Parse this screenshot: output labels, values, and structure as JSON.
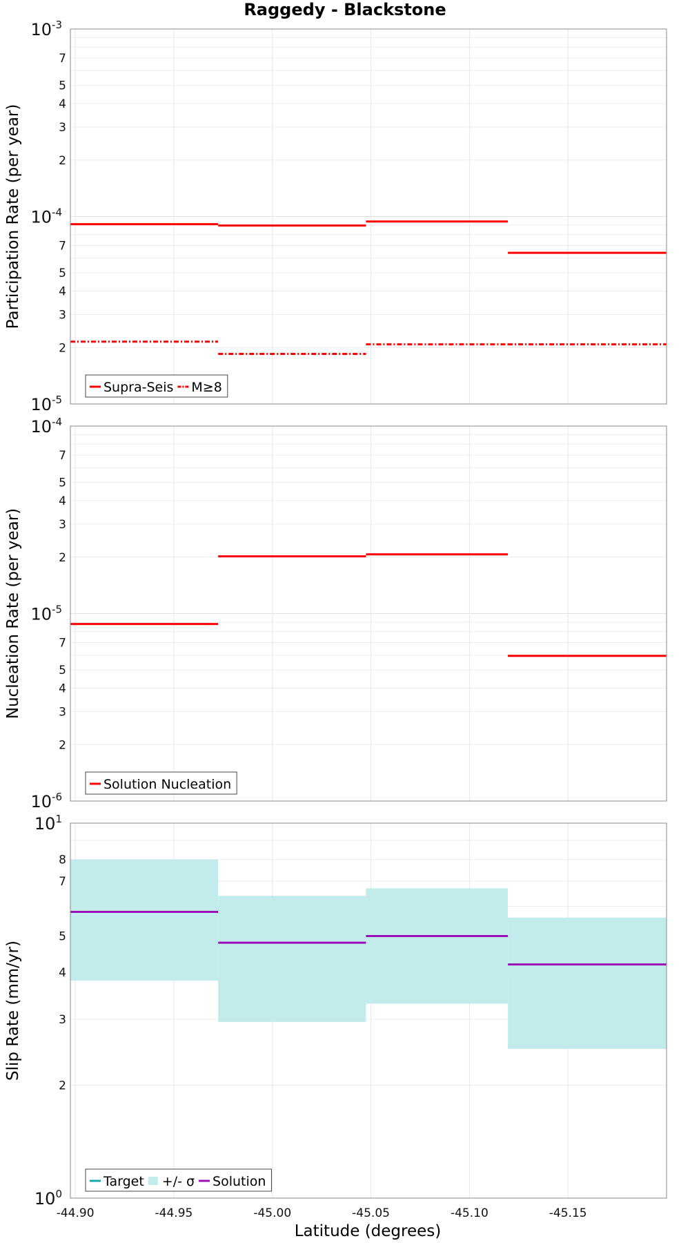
{
  "title": "Raggedy - Blackstone",
  "xlabel": "Latitude (degrees)",
  "chart_data": [
    {
      "type": "line",
      "ylabel": "Participation Rate (per year)",
      "yscale": "log",
      "ylim": [
        1e-05,
        0.001
      ],
      "xlim": [
        -44.8975,
        -45.2
      ],
      "xticks": [
        "-44.90",
        "-44.95",
        "-45.00",
        "-45.05",
        "-45.10",
        "-45.15"
      ],
      "grid": true,
      "legend_position": "bottom-left",
      "series": [
        {
          "name": "Supra-Seis",
          "color": "#ff0000",
          "style": "solid",
          "segments": [
            {
              "x": [
                -44.8975,
                -44.9725
              ],
              "y": 9.1e-05
            },
            {
              "x": [
                -44.9725,
                -45.0475
              ],
              "y": 8.95e-05
            },
            {
              "x": [
                -45.0475,
                -45.1195
              ],
              "y": 9.4e-05
            },
            {
              "x": [
                -45.1195,
                -45.2
              ],
              "y": 6.4e-05
            }
          ]
        },
        {
          "name": "M≥8",
          "color": "#ff0000",
          "style": "dashdot",
          "segments": [
            {
              "x": [
                -44.8975,
                -44.9725
              ],
              "y": 2.15e-05
            },
            {
              "x": [
                -44.9725,
                -45.0475
              ],
              "y": 1.85e-05
            },
            {
              "x": [
                -45.0475,
                -45.1195
              ],
              "y": 2.08e-05
            },
            {
              "x": [
                -45.1195,
                -45.2
              ],
              "y": 2.08e-05
            }
          ]
        }
      ]
    },
    {
      "type": "line",
      "ylabel": "Nucleation Rate (per year)",
      "yscale": "log",
      "ylim": [
        1e-06,
        0.0001
      ],
      "xlim": [
        -44.8975,
        -45.2
      ],
      "xticks": [
        "-44.90",
        "-44.95",
        "-45.00",
        "-45.05",
        "-45.10",
        "-45.15"
      ],
      "grid": true,
      "legend_position": "bottom-left",
      "series": [
        {
          "name": "Solution Nucleation",
          "color": "#ff0000",
          "style": "solid",
          "segments": [
            {
              "x": [
                -44.8975,
                -44.9725
              ],
              "y": 8.8e-06
            },
            {
              "x": [
                -44.9725,
                -45.0475
              ],
              "y": 2.02e-05
            },
            {
              "x": [
                -45.0475,
                -45.1195
              ],
              "y": 2.07e-05
            },
            {
              "x": [
                -45.1195,
                -45.2
              ],
              "y": 5.95e-06
            }
          ]
        }
      ]
    },
    {
      "type": "line",
      "ylabel": "Slip Rate (mm/yr)",
      "yscale": "log",
      "ylim": [
        1,
        10
      ],
      "xlim": [
        -44.8975,
        -45.2
      ],
      "xticks": [
        "-44.90",
        "-44.95",
        "-45.00",
        "-45.05",
        "-45.10",
        "-45.15"
      ],
      "grid": true,
      "legend_position": "bottom-left",
      "series": [
        {
          "name": "Target",
          "color": "#1aa8a8",
          "style": "solid",
          "segments": [
            {
              "x": [
                -44.8975,
                -44.9725
              ],
              "y": 5.9
            },
            {
              "x": [
                -44.9725,
                -45.0475
              ],
              "y": 4.7
            },
            {
              "x": [
                -45.0475,
                -45.1195
              ],
              "y": 5.0
            },
            {
              "x": [
                -45.1195,
                -45.2
              ],
              "y": 4.1
            }
          ]
        },
        {
          "name": "+/- σ",
          "color": "#c2ebeb",
          "style": "band",
          "segments": [
            {
              "x": [
                -44.8975,
                -44.9725
              ],
              "low": 3.8,
              "high": 8.0
            },
            {
              "x": [
                -44.9725,
                -45.0475
              ],
              "low": 2.95,
              "high": 6.4
            },
            {
              "x": [
                -45.0475,
                -45.1195
              ],
              "low": 3.3,
              "high": 6.7
            },
            {
              "x": [
                -45.1195,
                -45.2
              ],
              "low": 2.5,
              "high": 5.6
            }
          ]
        },
        {
          "name": "Solution",
          "color": "#9b10b8",
          "style": "solid",
          "segments": [
            {
              "x": [
                -44.8975,
                -44.9725
              ],
              "y": 5.8
            },
            {
              "x": [
                -44.9725,
                -45.0475
              ],
              "y": 4.8
            },
            {
              "x": [
                -45.0475,
                -45.1195
              ],
              "y": 5.0
            },
            {
              "x": [
                -45.1195,
                -45.2
              ],
              "y": 4.2
            }
          ]
        }
      ]
    }
  ]
}
